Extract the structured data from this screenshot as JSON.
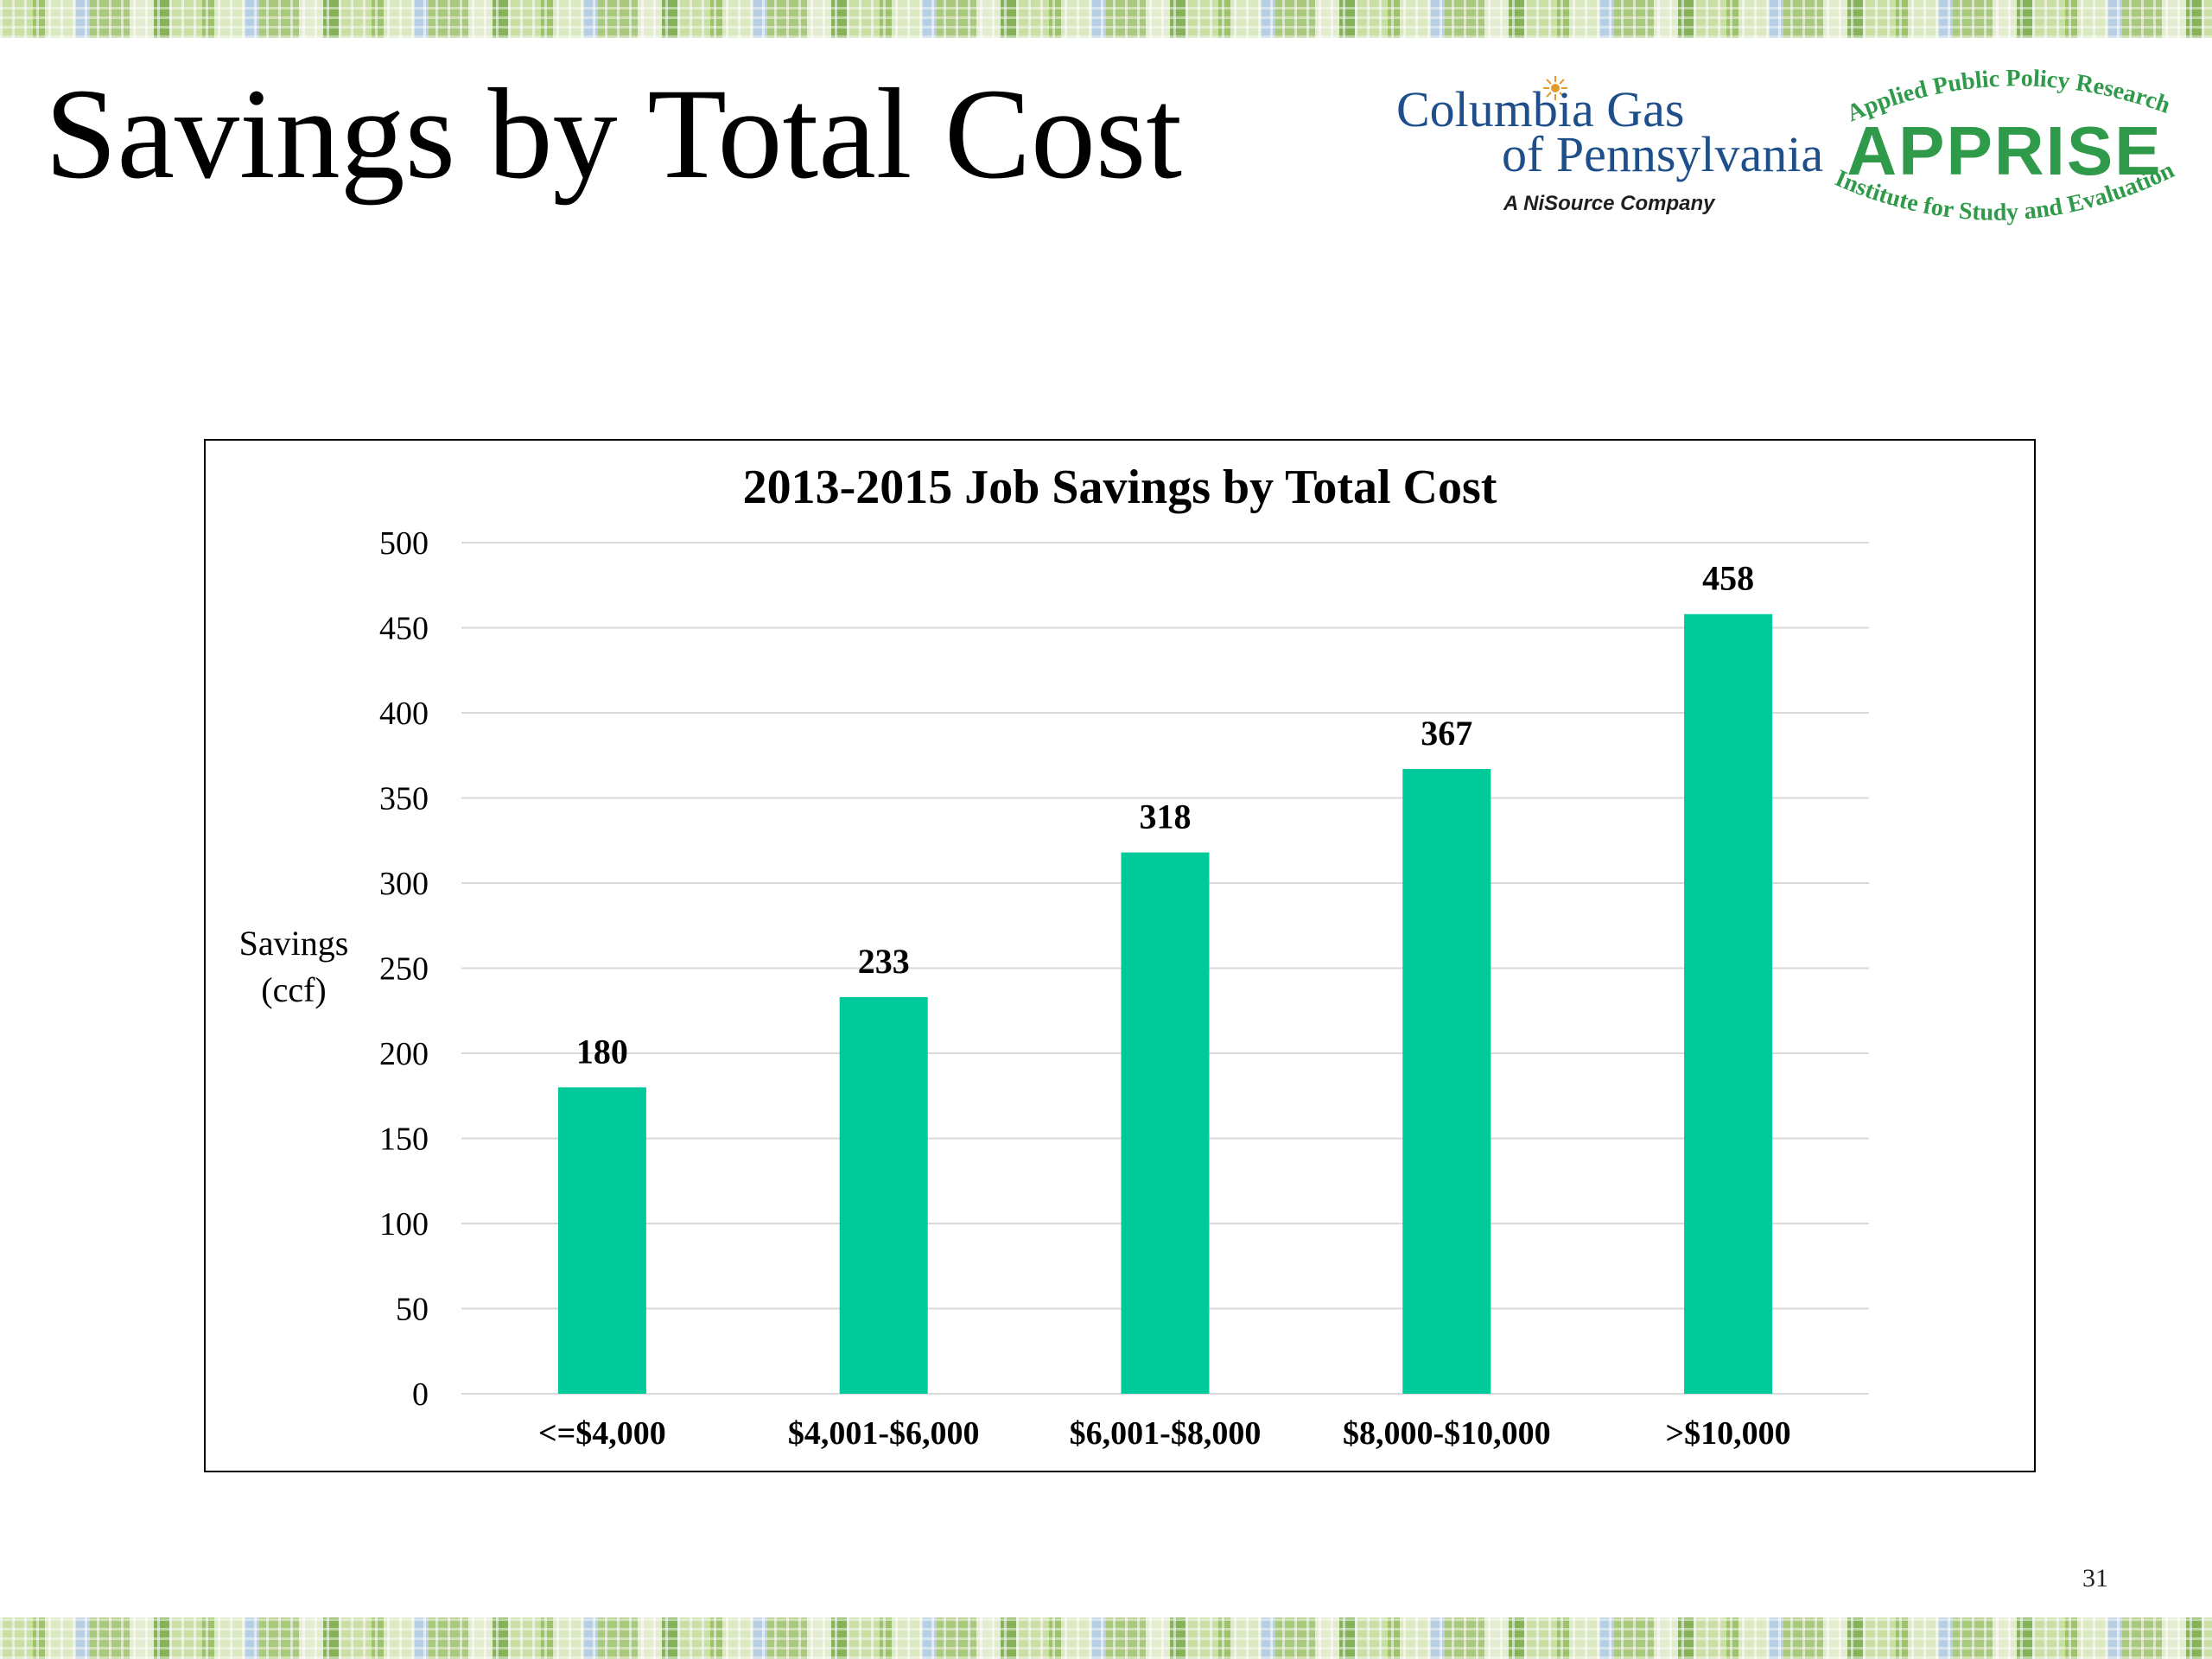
{
  "slide": {
    "title": "Savings by Total Cost",
    "page_number": "31"
  },
  "logos": {
    "columbia": {
      "line1": "Columbia Gas",
      "line2": "of Pennsylvania",
      "line3": "A NiSource Company",
      "color": "#1e4f8a"
    },
    "apprise": {
      "top_arc": "Applied Public Policy Research",
      "main": "APPRISE",
      "bottom_arc": "Institute for Study and Evaluation",
      "color": "#2e9a4a"
    }
  },
  "chart_data": {
    "type": "bar",
    "title": "2013-2015 Job Savings by Total Cost",
    "xlabel": "",
    "ylabel_lines": [
      "Savings",
      "(ccf)"
    ],
    "categories": [
      "<=$4,000",
      "$4,001-$6,000",
      "$6,001-$8,000",
      "$8,000-$10,000",
      ">$10,000"
    ],
    "values": [
      180,
      233,
      318,
      367,
      458
    ],
    "data_labels": [
      "180",
      "233",
      "318",
      "367",
      "458"
    ],
    "ylim": [
      0,
      500
    ],
    "yticks": [
      0,
      50,
      100,
      150,
      200,
      250,
      300,
      350,
      400,
      450,
      500
    ],
    "grid": true,
    "bar_color": "#00c99a",
    "grid_color": "#d9d9d9"
  }
}
